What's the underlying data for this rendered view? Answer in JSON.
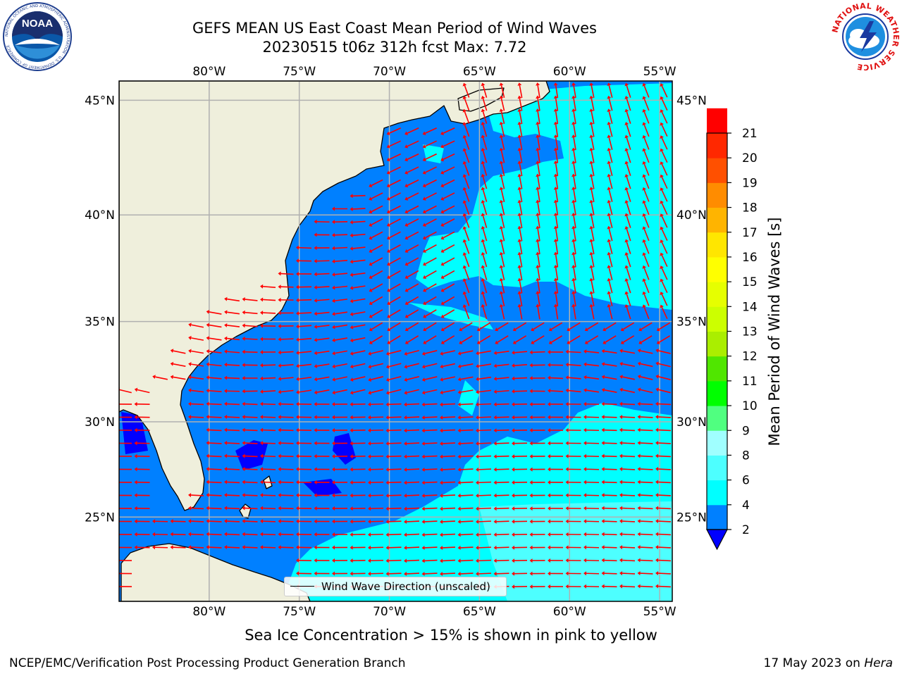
{
  "title": {
    "line1": "GEFS MEAN US East Coast Mean Period of Wind Waves",
    "line2": "20230515 t06z 312h fcst   Max: 7.72"
  },
  "logos": {
    "noaa_text": "NOAA",
    "noaa_ring_text": "NATIONAL OCEANIC AND ATMOSPHERIC ADMINISTRATION · U.S. DEPARTMENT OF COMMERCE",
    "nws_ring_text": "NATIONAL WEATHER SERVICE"
  },
  "map": {
    "lon_ticks": [
      "80°W",
      "75°W",
      "70°W",
      "65°W",
      "60°W",
      "55°W"
    ],
    "lon_values": [
      -80,
      -75,
      -70,
      -65,
      -60,
      -55
    ],
    "lat_ticks": [
      "45°N",
      "40°N",
      "35°N",
      "30°N",
      "25°N"
    ],
    "lat_values": [
      45,
      40,
      35,
      30,
      25
    ],
    "extent": {
      "lon": [
        -85,
        -54.3
      ],
      "lat": [
        20.4,
        45.8
      ]
    },
    "grid": true,
    "vector_color": "#ff0000",
    "land_color": "#efefdc",
    "ocean_color": "#0080ff"
  },
  "legend": {
    "label": "Wind Wave Direction (unscaled)",
    "placement": "lower-center"
  },
  "colorbar": {
    "label": "Mean Period of Wind Waves [s]",
    "ticks": [
      "2",
      "4",
      "6",
      "8",
      "9",
      "10",
      "11",
      "12",
      "13",
      "14",
      "15",
      "16",
      "17",
      "18",
      "19",
      "20",
      "21"
    ],
    "bounds": [
      2,
      4,
      6,
      8,
      9,
      10,
      11,
      12,
      13,
      14,
      15,
      16,
      17,
      18,
      19,
      20,
      21
    ],
    "colors": [
      "#0080ff",
      "#00ffff",
      "#4dffff",
      "#a0ffff",
      "#50ff80",
      "#00ff00",
      "#50e600",
      "#aaee00",
      "#ccff00",
      "#e6ff00",
      "#ffff00",
      "#ffe600",
      "#ffb400",
      "#ff8c00",
      "#ff5000",
      "#ff2800",
      "#ff0000"
    ],
    "under_color": "#0000ff"
  },
  "notes": {
    "ice": "Sea Ice Concentration > 15% is shown in pink to yellow",
    "footer_left": "NCEP/EMC/Verification Post Processing Product Generation Branch",
    "footer_date": "17 May 2023 on",
    "footer_machine": "Hera"
  }
}
